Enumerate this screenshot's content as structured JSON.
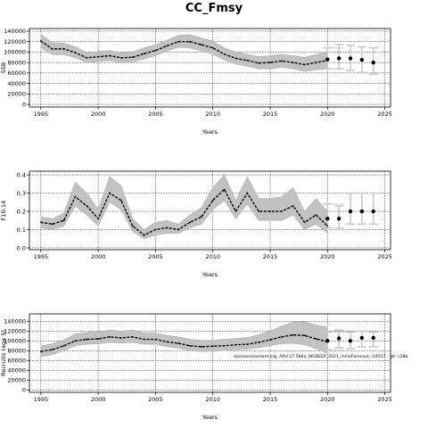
{
  "title": "CC_Fmsy",
  "note": "stockassessment.org, ARU.27.5b6a_WGDEEP_2021_mmeForecast, r24517 , git: c28b",
  "colors": {
    "band": "#c2c2c2",
    "band_dark": "#aaaaaa",
    "line": "#000000",
    "forecast_band": "#d0d0d0",
    "forecast_error": "#c8c8c8",
    "grid": "#000000"
  },
  "chart_data": [
    {
      "type": "line",
      "key": "ssb",
      "ylabel": "SSB",
      "xlabel": "Years",
      "xlim": [
        1994,
        2025.5
      ],
      "ylim": [
        -5000,
        145000
      ],
      "x_ticks": [
        1995,
        2000,
        2005,
        2010,
        2015,
        2020,
        2025
      ],
      "y_ticks": [
        0,
        20000,
        40000,
        60000,
        80000,
        100000,
        120000,
        140000
      ],
      "grid": true,
      "years": [
        1995,
        1996,
        1997,
        1998,
        1999,
        2000,
        2001,
        2002,
        2003,
        2004,
        2005,
        2006,
        2007,
        2008,
        2009,
        2010,
        2011,
        2012,
        2013,
        2014,
        2015,
        2016,
        2017,
        2018,
        2019,
        2020
      ],
      "estimate": [
        121000,
        106000,
        106000,
        99000,
        89000,
        91000,
        93000,
        89000,
        90000,
        97000,
        103000,
        112000,
        120000,
        120000,
        114000,
        108000,
        96000,
        88000,
        84000,
        79000,
        80000,
        83000,
        80000,
        76000,
        80000,
        84000
      ],
      "lower": [
        108000,
        95000,
        95000,
        89000,
        80000,
        82000,
        84000,
        80000,
        81000,
        87000,
        93000,
        102000,
        109000,
        108000,
        102000,
        96000,
        85000,
        77000,
        73000,
        68000,
        68000,
        71000,
        68000,
        63000,
        66000,
        68000
      ],
      "upper": [
        134000,
        118000,
        117000,
        110000,
        99000,
        101000,
        103000,
        99000,
        100000,
        108000,
        114000,
        123000,
        132000,
        133000,
        127000,
        121000,
        108000,
        100000,
        96000,
        91000,
        93000,
        96000,
        93000,
        90000,
        95000,
        101000
      ],
      "forecast_years": [
        2020,
        2021,
        2022,
        2023,
        2024
      ],
      "forecast_estimate": [
        86000,
        88000,
        88000,
        85000,
        80000
      ],
      "forecast_lower": [
        68000,
        68000,
        65000,
        61000,
        58000
      ],
      "forecast_upper": [
        108000,
        114000,
        113000,
        110000,
        108000
      ]
    },
    {
      "type": "line",
      "key": "fbar",
      "ylabel": "F10-14",
      "xlabel": "Years",
      "xlim": [
        1994,
        2025.5
      ],
      "ylim": [
        -0.01,
        0.42
      ],
      "x_ticks": [
        1995,
        2000,
        2005,
        2010,
        2015,
        2020,
        2025
      ],
      "y_ticks": [
        0.0,
        0.1,
        0.2,
        0.3,
        0.4
      ],
      "grid": true,
      "years": [
        1995,
        1996,
        1997,
        1998,
        1999,
        2000,
        2001,
        2002,
        2003,
        2004,
        2005,
        2006,
        2007,
        2008,
        2009,
        2010,
        2011,
        2012,
        2013,
        2014,
        2015,
        2016,
        2017,
        2018,
        2019,
        2020
      ],
      "estimate": [
        0.14,
        0.13,
        0.15,
        0.28,
        0.23,
        0.16,
        0.3,
        0.26,
        0.12,
        0.07,
        0.1,
        0.11,
        0.1,
        0.14,
        0.17,
        0.26,
        0.32,
        0.2,
        0.3,
        0.2,
        0.2,
        0.2,
        0.23,
        0.14,
        0.18,
        0.12
      ],
      "lower": [
        0.11,
        0.1,
        0.12,
        0.23,
        0.18,
        0.12,
        0.25,
        0.21,
        0.09,
        0.05,
        0.07,
        0.08,
        0.08,
        0.11,
        0.13,
        0.21,
        0.26,
        0.16,
        0.24,
        0.15,
        0.15,
        0.15,
        0.18,
        0.1,
        0.13,
        0.08
      ],
      "upper": [
        0.17,
        0.16,
        0.19,
        0.36,
        0.3,
        0.21,
        0.39,
        0.34,
        0.16,
        0.1,
        0.14,
        0.15,
        0.13,
        0.18,
        0.22,
        0.33,
        0.4,
        0.26,
        0.39,
        0.27,
        0.27,
        0.28,
        0.33,
        0.2,
        0.27,
        0.2
      ],
      "forecast_years": [
        2020,
        2021,
        2022,
        2023,
        2024
      ],
      "forecast_estimate": [
        0.16,
        0.16,
        0.2,
        0.2,
        0.2
      ],
      "forecast_lower": [
        0.11,
        0.1,
        0.13,
        0.13,
        0.13
      ],
      "forecast_upper": [
        0.24,
        0.23,
        0.3,
        0.3,
        0.3
      ]
    },
    {
      "type": "line",
      "key": "recruits",
      "ylabel": "Recruits (age 5)",
      "xlabel": "Years",
      "xlim": [
        1994,
        2025.5
      ],
      "ylim": [
        -5000,
        155000
      ],
      "x_ticks": [
        1995,
        2000,
        2005,
        2010,
        2015,
        2020,
        2025
      ],
      "y_ticks": [
        0,
        20000,
        40000,
        60000,
        80000,
        100000,
        120000,
        140000
      ],
      "grid": true,
      "years": [
        1995,
        1996,
        1997,
        1998,
        1999,
        2000,
        2001,
        2002,
        2003,
        2004,
        2005,
        2006,
        2007,
        2008,
        2009,
        2010,
        2011,
        2012,
        2013,
        2014,
        2015,
        2016,
        2017,
        2018,
        2019,
        2020
      ],
      "estimate": [
        78000,
        82000,
        90000,
        100000,
        103000,
        104000,
        108000,
        106000,
        108000,
        103000,
        103000,
        98000,
        95000,
        90000,
        88000,
        89000,
        90000,
        92000,
        93000,
        97000,
        102000,
        108000,
        112000,
        111000,
        104000,
        98000
      ],
      "lower": [
        68000,
        72000,
        80000,
        90000,
        93000,
        94000,
        97000,
        95000,
        97000,
        93000,
        93000,
        88000,
        85000,
        80000,
        78000,
        79000,
        80000,
        82000,
        83000,
        86000,
        90000,
        94000,
        95000,
        92000,
        84000,
        75000
      ],
      "upper": [
        90000,
        94000,
        102000,
        114000,
        117000,
        118000,
        122000,
        120000,
        122000,
        116000,
        116000,
        111000,
        108000,
        103000,
        101000,
        101000,
        103000,
        105000,
        107000,
        112000,
        120000,
        130000,
        138000,
        139000,
        132000,
        128000
      ],
      "forecast_years": [
        2020,
        2021,
        2022,
        2023,
        2024
      ],
      "forecast_estimate": [
        100000,
        105000,
        100000,
        106000,
        106000
      ],
      "forecast_lower": [
        82000,
        86000,
        84000,
        88000,
        88000
      ],
      "forecast_upper": [
        118000,
        122000,
        118000,
        120000,
        118000
      ]
    }
  ]
}
